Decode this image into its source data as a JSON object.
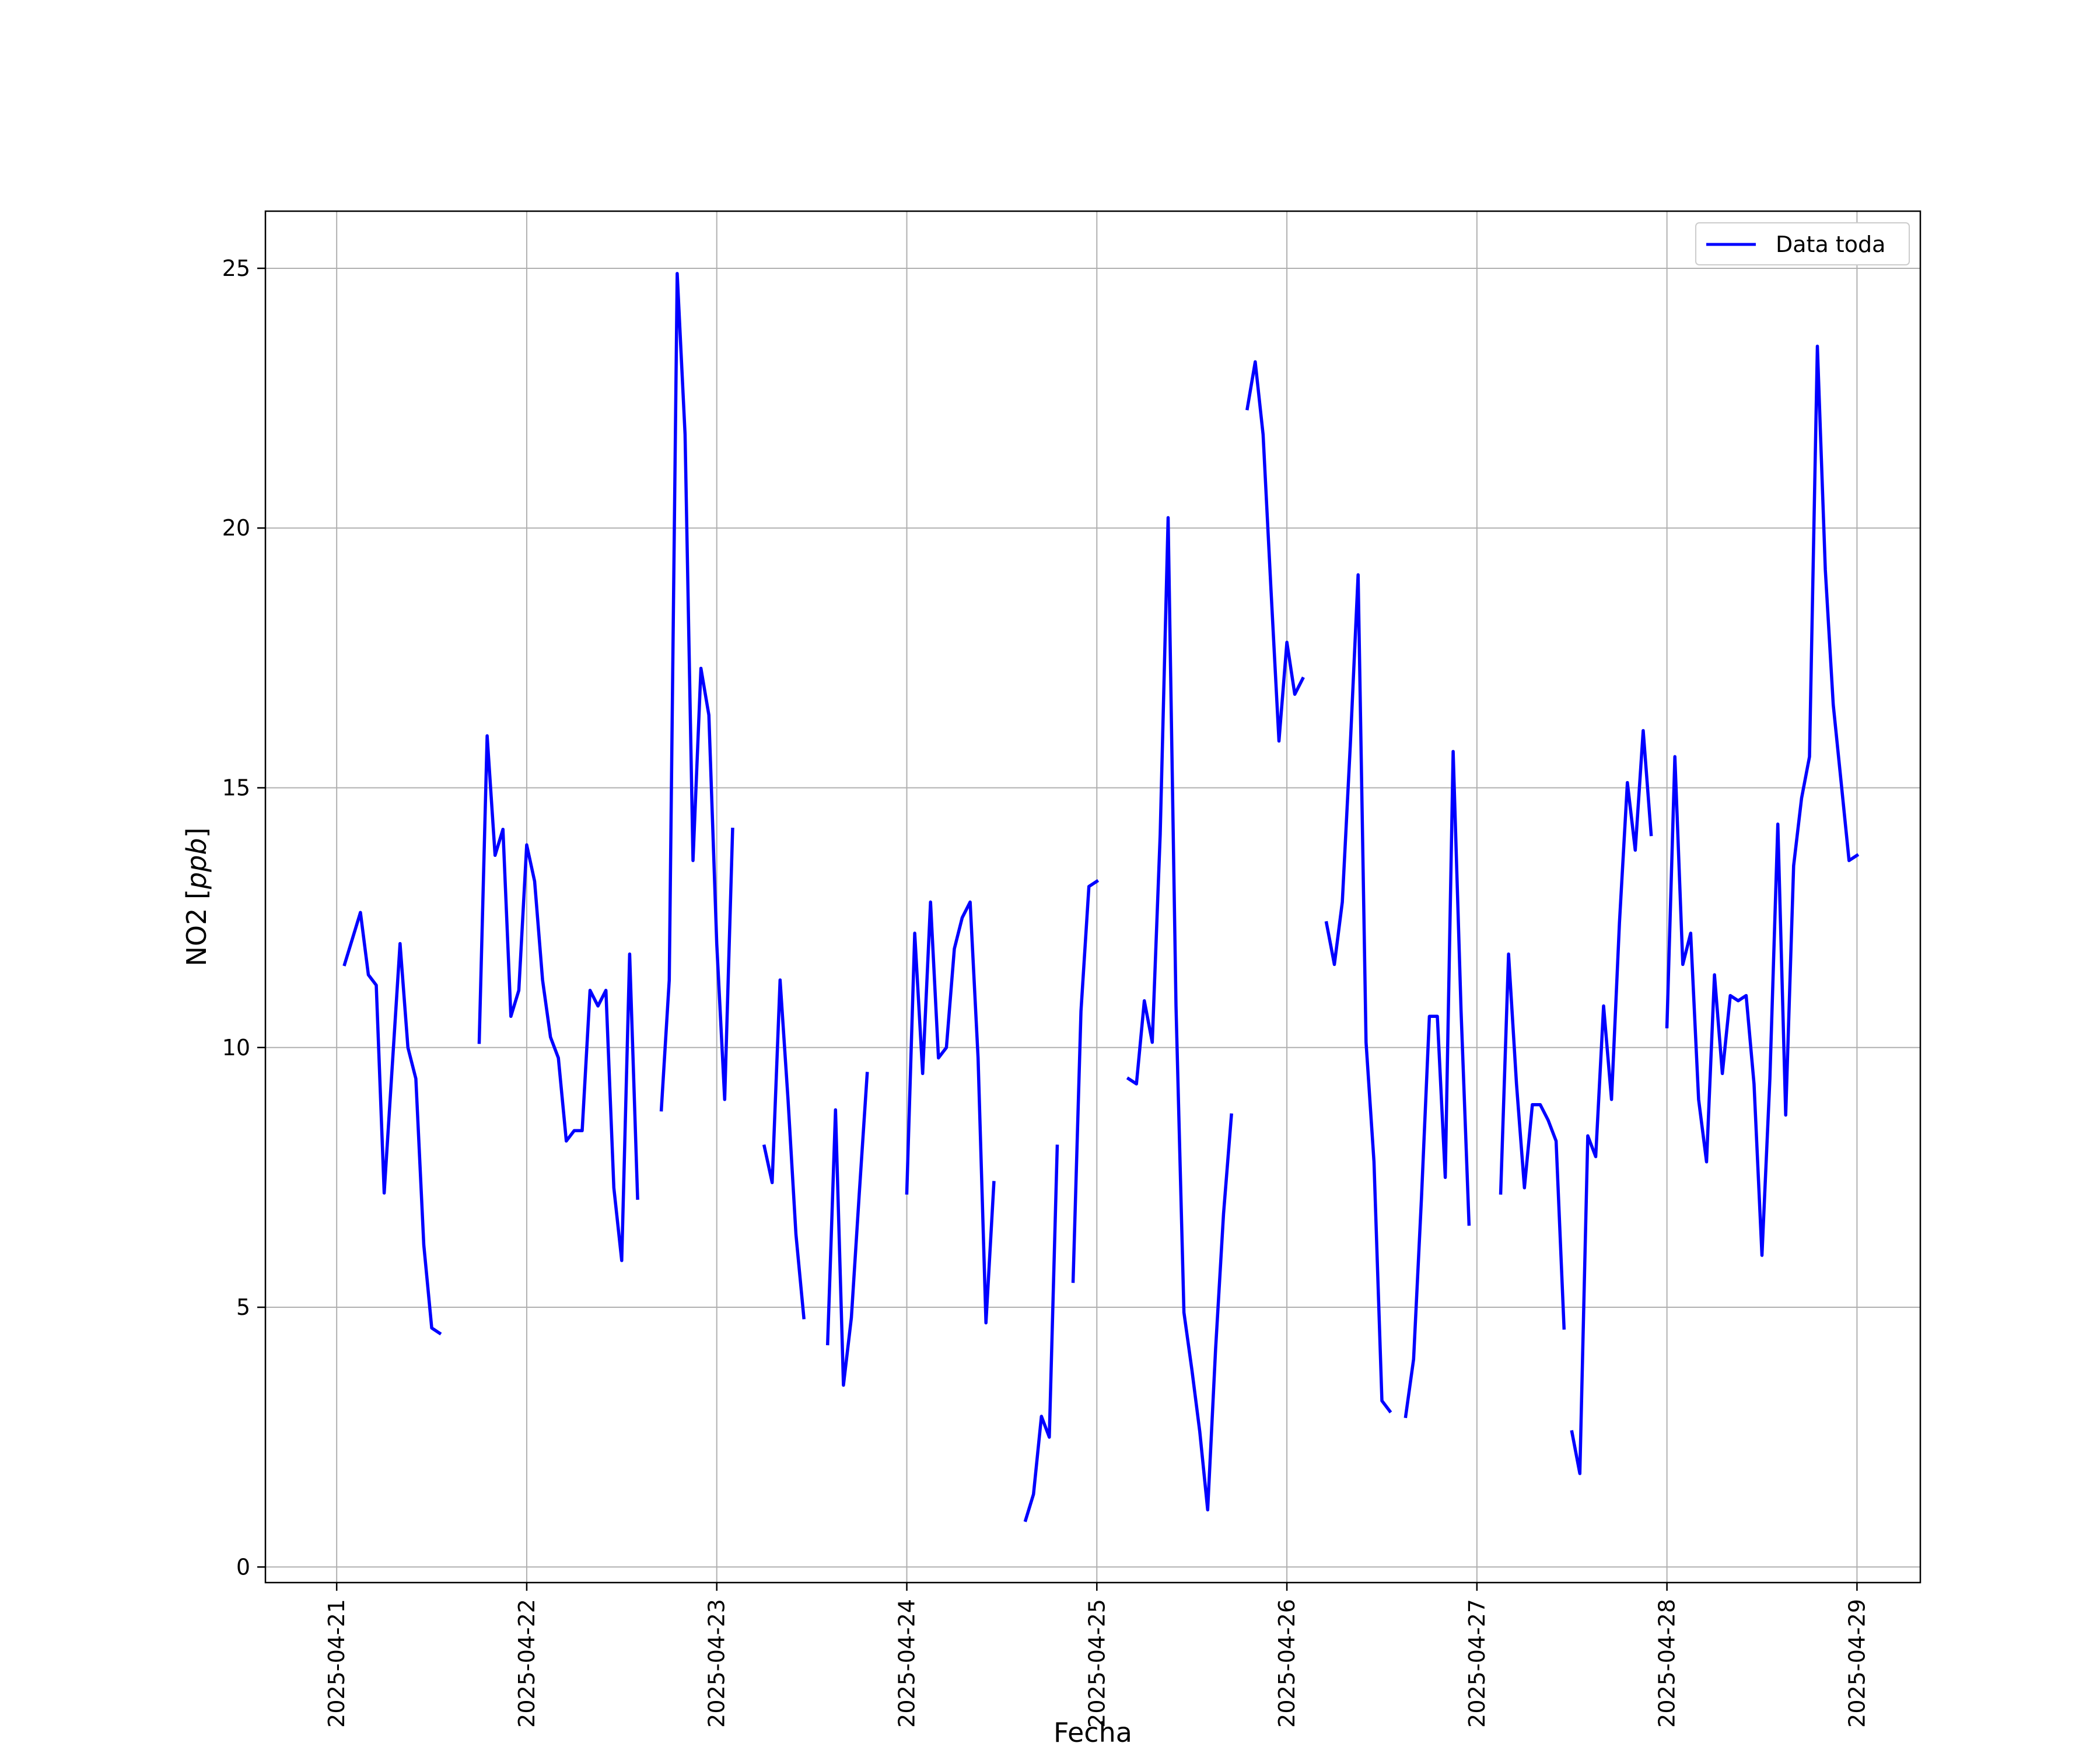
{
  "chart_data": {
    "type": "line",
    "xlabel": "Fecha",
    "ylabel_prefix": "NO2 [",
    "ylabel_unit": "ppb",
    "ylabel_suffix": "]",
    "xlim": [
      "2025-04-20 15:00",
      "2025-04-29 08:00"
    ],
    "ylim": [
      -0.3,
      26.1
    ],
    "x_tick_labels": [
      "2025-04-21",
      "2025-04-22",
      "2025-04-23",
      "2025-04-24",
      "2025-04-25",
      "2025-04-26",
      "2025-04-27",
      "2025-04-28",
      "2025-04-29"
    ],
    "y_ticks": [
      0,
      5,
      10,
      15,
      20,
      25
    ],
    "grid": true,
    "legend": {
      "position": "top-right"
    },
    "series": [
      {
        "name": "Data toda",
        "color": "#0000ff",
        "segments": [
          [
            [
              "2025-04-21 01:00",
              11.6
            ],
            [
              "2025-04-21 03:00",
              12.6
            ],
            [
              "2025-04-21 04:00",
              11.4
            ],
            [
              "2025-04-21 05:00",
              11.2
            ],
            [
              "2025-04-21 06:00",
              7.2
            ],
            [
              "2025-04-21 08:00",
              12.0
            ],
            [
              "2025-04-21 09:00",
              10.0
            ],
            [
              "2025-04-21 10:00",
              9.4
            ],
            [
              "2025-04-21 11:00",
              6.2
            ],
            [
              "2025-04-21 12:00",
              4.6
            ],
            [
              "2025-04-21 13:00",
              4.5
            ]
          ],
          [
            [
              "2025-04-21 18:00",
              10.1
            ],
            [
              "2025-04-21 19:00",
              16.0
            ],
            [
              "2025-04-21 20:00",
              13.7
            ],
            [
              "2025-04-21 21:00",
              14.2
            ],
            [
              "2025-04-21 22:00",
              10.6
            ],
            [
              "2025-04-21 23:00",
              11.1
            ],
            [
              "2025-04-22 00:00",
              13.9
            ],
            [
              "2025-04-22 01:00",
              13.2
            ],
            [
              "2025-04-22 02:00",
              11.3
            ],
            [
              "2025-04-22 03:00",
              10.2
            ],
            [
              "2025-04-22 04:00",
              9.8
            ],
            [
              "2025-04-22 05:00",
              8.2
            ],
            [
              "2025-04-22 06:00",
              8.4
            ],
            [
              "2025-04-22 07:00",
              8.4
            ],
            [
              "2025-04-22 08:00",
              11.1
            ],
            [
              "2025-04-22 09:00",
              10.8
            ],
            [
              "2025-04-22 10:00",
              11.1
            ],
            [
              "2025-04-22 11:00",
              7.3
            ],
            [
              "2025-04-22 12:00",
              5.9
            ],
            [
              "2025-04-22 13:00",
              11.8
            ],
            [
              "2025-04-22 14:00",
              7.1
            ]
          ],
          [
            [
              "2025-04-22 17:00",
              8.8
            ],
            [
              "2025-04-22 18:00",
              11.3
            ],
            [
              "2025-04-22 19:00",
              24.9
            ],
            [
              "2025-04-22 20:00",
              21.8
            ],
            [
              "2025-04-22 21:00",
              13.6
            ],
            [
              "2025-04-22 22:00",
              17.3
            ],
            [
              "2025-04-22 23:00",
              16.4
            ],
            [
              "2025-04-23 00:00",
              12.0
            ],
            [
              "2025-04-23 01:00",
              9.0
            ],
            [
              "2025-04-23 02:00",
              14.2
            ]
          ],
          [
            [
              "2025-04-23 06:00",
              8.1
            ],
            [
              "2025-04-23 07:00",
              7.4
            ],
            [
              "2025-04-23 08:00",
              11.3
            ],
            [
              "2025-04-23 09:00",
              9.0
            ],
            [
              "2025-04-23 10:00",
              6.4
            ],
            [
              "2025-04-23 11:00",
              4.8
            ]
          ],
          [
            [
              "2025-04-23 14:00",
              4.3
            ],
            [
              "2025-04-23 15:00",
              8.8
            ],
            [
              "2025-04-23 16:00",
              3.5
            ],
            [
              "2025-04-23 17:00",
              4.8
            ],
            [
              "2025-04-23 18:00",
              7.2
            ],
            [
              "2025-04-23 19:00",
              9.5
            ]
          ],
          [
            [
              "2025-04-24 00:00",
              7.2
            ],
            [
              "2025-04-24 01:00",
              12.2
            ],
            [
              "2025-04-24 02:00",
              9.5
            ],
            [
              "2025-04-24 03:00",
              12.8
            ],
            [
              "2025-04-24 04:00",
              9.8
            ],
            [
              "2025-04-24 05:00",
              10.0
            ],
            [
              "2025-04-24 06:00",
              11.9
            ],
            [
              "2025-04-24 07:00",
              12.5
            ],
            [
              "2025-04-24 08:00",
              12.8
            ],
            [
              "2025-04-24 09:00",
              9.8
            ],
            [
              "2025-04-24 10:00",
              4.7
            ],
            [
              "2025-04-24 11:00",
              7.4
            ]
          ],
          [
            [
              "2025-04-24 15:00",
              0.9
            ],
            [
              "2025-04-24 16:00",
              1.4
            ],
            [
              "2025-04-24 17:00",
              2.9
            ],
            [
              "2025-04-24 18:00",
              2.5
            ],
            [
              "2025-04-24 19:00",
              8.1
            ]
          ],
          [
            [
              "2025-04-24 21:00",
              5.5
            ],
            [
              "2025-04-24 22:00",
              10.7
            ],
            [
              "2025-04-24 23:00",
              13.1
            ],
            [
              "2025-04-25 00:00",
              13.2
            ]
          ],
          [
            [
              "2025-04-25 04:00",
              9.4
            ],
            [
              "2025-04-25 05:00",
              9.3
            ],
            [
              "2025-04-25 06:00",
              10.9
            ],
            [
              "2025-04-25 07:00",
              10.1
            ],
            [
              "2025-04-25 08:00",
              14.1
            ],
            [
              "2025-04-25 09:00",
              20.2
            ],
            [
              "2025-04-25 10:00",
              10.8
            ],
            [
              "2025-04-25 11:00",
              4.9
            ],
            [
              "2025-04-25 12:00",
              3.8
            ],
            [
              "2025-04-25 13:00",
              2.6
            ],
            [
              "2025-04-25 14:00",
              1.1
            ],
            [
              "2025-04-25 15:00",
              4.2
            ],
            [
              "2025-04-25 16:00",
              6.8
            ],
            [
              "2025-04-25 17:00",
              8.7
            ]
          ],
          [
            [
              "2025-04-25 19:00",
              22.3
            ],
            [
              "2025-04-25 20:00",
              23.2
            ],
            [
              "2025-04-25 21:00",
              21.8
            ],
            [
              "2025-04-25 22:00",
              18.8
            ],
            [
              "2025-04-25 23:00",
              15.9
            ],
            [
              "2025-04-26 00:00",
              17.8
            ],
            [
              "2025-04-26 01:00",
              16.8
            ],
            [
              "2025-04-26 02:00",
              17.1
            ]
          ],
          [
            [
              "2025-04-26 05:00",
              12.4
            ],
            [
              "2025-04-26 06:00",
              11.6
            ],
            [
              "2025-04-26 07:00",
              12.8
            ],
            [
              "2025-04-26 08:00",
              15.8
            ],
            [
              "2025-04-26 09:00",
              19.1
            ],
            [
              "2025-04-26 10:00",
              10.1
            ],
            [
              "2025-04-26 11:00",
              7.8
            ],
            [
              "2025-04-26 12:00",
              3.2
            ],
            [
              "2025-04-26 13:00",
              3.0
            ]
          ],
          [
            [
              "2025-04-26 15:00",
              2.9
            ],
            [
              "2025-04-26 16:00",
              4.0
            ],
            [
              "2025-04-26 17:00",
              7.1
            ],
            [
              "2025-04-26 18:00",
              10.6
            ],
            [
              "2025-04-26 19:00",
              10.6
            ],
            [
              "2025-04-26 20:00",
              7.5
            ],
            [
              "2025-04-26 21:00",
              15.7
            ],
            [
              "2025-04-26 22:00",
              10.7
            ],
            [
              "2025-04-26 23:00",
              6.6
            ]
          ],
          [
            [
              "2025-04-27 03:00",
              7.2
            ],
            [
              "2025-04-27 04:00",
              11.8
            ],
            [
              "2025-04-27 05:00",
              9.3
            ],
            [
              "2025-04-27 06:00",
              7.3
            ],
            [
              "2025-04-27 07:00",
              8.9
            ],
            [
              "2025-04-27 08:00",
              8.9
            ],
            [
              "2025-04-27 09:00",
              8.6
            ],
            [
              "2025-04-27 10:00",
              8.2
            ],
            [
              "2025-04-27 11:00",
              4.6
            ]
          ],
          [
            [
              "2025-04-27 12:00",
              2.6
            ],
            [
              "2025-04-27 13:00",
              1.8
            ],
            [
              "2025-04-27 14:00",
              8.3
            ],
            [
              "2025-04-27 15:00",
              7.9
            ],
            [
              "2025-04-27 16:00",
              10.8
            ],
            [
              "2025-04-27 17:00",
              9.0
            ],
            [
              "2025-04-27 18:00",
              12.4
            ],
            [
              "2025-04-27 19:00",
              15.1
            ],
            [
              "2025-04-27 20:00",
              13.8
            ],
            [
              "2025-04-27 21:00",
              16.1
            ],
            [
              "2025-04-27 22:00",
              14.1
            ]
          ],
          [
            [
              "2025-04-28 00:00",
              10.4
            ],
            [
              "2025-04-28 01:00",
              15.6
            ],
            [
              "2025-04-28 02:00",
              11.6
            ],
            [
              "2025-04-28 03:00",
              12.2
            ],
            [
              "2025-04-28 04:00",
              9.0
            ],
            [
              "2025-04-28 05:00",
              7.8
            ],
            [
              "2025-04-28 06:00",
              11.4
            ],
            [
              "2025-04-28 07:00",
              9.5
            ],
            [
              "2025-04-28 08:00",
              11.0
            ],
            [
              "2025-04-28 09:00",
              10.9
            ],
            [
              "2025-04-28 10:00",
              11.0
            ],
            [
              "2025-04-28 11:00",
              9.3
            ],
            [
              "2025-04-28 12:00",
              6.0
            ],
            [
              "2025-04-28 13:00",
              9.4
            ],
            [
              "2025-04-28 14:00",
              14.3
            ],
            [
              "2025-04-28 15:00",
              8.7
            ],
            [
              "2025-04-28 16:00",
              13.5
            ],
            [
              "2025-04-28 17:00",
              14.8
            ],
            [
              "2025-04-28 18:00",
              15.6
            ],
            [
              "2025-04-28 19:00",
              23.5
            ],
            [
              "2025-04-28 20:00",
              19.2
            ],
            [
              "2025-04-28 21:00",
              16.6
            ],
            [
              "2025-04-28 22:00",
              15.1
            ],
            [
              "2025-04-28 23:00",
              13.6
            ],
            [
              "2025-04-29 00:00",
              13.7
            ]
          ]
        ]
      }
    ]
  }
}
